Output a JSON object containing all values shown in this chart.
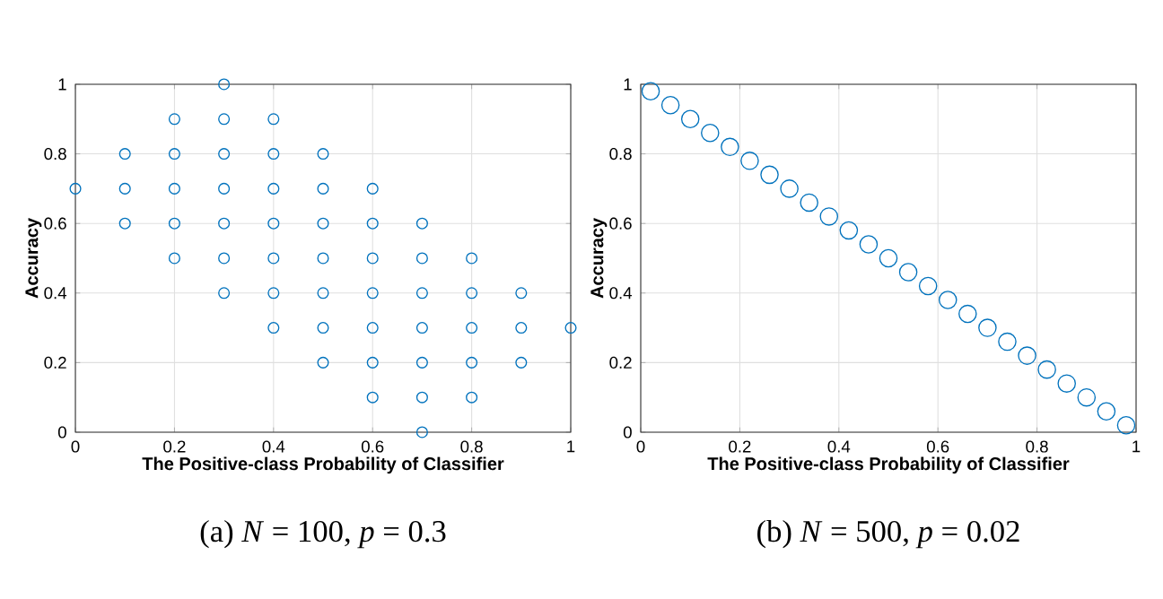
{
  "chart_data": [
    {
      "type": "scatter",
      "xlabel": "The Positive-class Probability of Classifier",
      "ylabel": "Accuracy",
      "series": [
        {
          "color": "#0072bd",
          "x": [
            0,
            0.1,
            0.1,
            0.1,
            0.2,
            0.2,
            0.2,
            0.2,
            0.2,
            0.3,
            0.3,
            0.3,
            0.3,
            0.3,
            0.3,
            0.3,
            0.4,
            0.4,
            0.4,
            0.4,
            0.4,
            0.4,
            0.4,
            0.5,
            0.5,
            0.5,
            0.5,
            0.5,
            0.5,
            0.5,
            0.6,
            0.6,
            0.6,
            0.6,
            0.6,
            0.6,
            0.6,
            0.7,
            0.7,
            0.7,
            0.7,
            0.7,
            0.7,
            0.7,
            0.8,
            0.8,
            0.8,
            0.8,
            0.8,
            0.9,
            0.9,
            0.9,
            1
          ],
          "values": [
            0.7,
            0.6,
            0.7,
            0.8,
            0.5,
            0.6,
            0.7,
            0.8,
            0.9,
            0.4,
            0.5,
            0.6,
            0.7,
            0.8,
            0.9,
            1,
            0.3,
            0.4,
            0.5,
            0.6,
            0.7,
            0.8,
            0.9,
            0.2,
            0.3,
            0.4,
            0.5,
            0.6,
            0.7,
            0.8,
            0.1,
            0.2,
            0.3,
            0.4,
            0.5,
            0.6,
            0.7,
            0,
            0.1,
            0.2,
            0.3,
            0.4,
            0.5,
            0.6,
            0.1,
            0.2,
            0.3,
            0.4,
            0.5,
            0.2,
            0.3,
            0.4,
            0.3
          ]
        }
      ],
      "xlim": [
        0,
        1
      ],
      "ylim": [
        0,
        1
      ],
      "xticks": [
        0,
        0.2,
        0.4,
        0.6,
        0.8,
        1
      ],
      "yticks": [
        0,
        0.2,
        0.4,
        0.6,
        0.8,
        1
      ],
      "grid": true,
      "marker": "circle",
      "annotations": [
        "(a) *N* = 100, *p* = 0.3"
      ]
    },
    {
      "type": "scatter",
      "xlabel": "The Positive-class Probability of Classifier",
      "ylabel": "Accuracy",
      "series": [
        {
          "color": "#0072bd",
          "x": [
            0.02,
            0.06,
            0.1,
            0.14,
            0.18,
            0.22,
            0.26,
            0.3,
            0.34,
            0.38,
            0.42,
            0.46,
            0.5,
            0.54,
            0.58,
            0.62,
            0.66,
            0.7,
            0.74,
            0.78,
            0.82,
            0.86,
            0.9,
            0.94,
            0.98
          ],
          "values": [
            0.98,
            0.94,
            0.9,
            0.86,
            0.82,
            0.78,
            0.74,
            0.7,
            0.66,
            0.62,
            0.58,
            0.54,
            0.5,
            0.46,
            0.42,
            0.38,
            0.34,
            0.3,
            0.26,
            0.22,
            0.18,
            0.14,
            0.1,
            0.06,
            0.02
          ]
        }
      ],
      "xlim": [
        0,
        1
      ],
      "ylim": [
        0,
        1
      ],
      "xticks": [
        0,
        0.2,
        0.4,
        0.6,
        0.8,
        1
      ],
      "yticks": [
        0,
        0.2,
        0.4,
        0.6,
        0.8,
        1
      ],
      "grid": true,
      "marker": "circle",
      "annotations": [
        "(b) *N* = 500, *p* = 0.02"
      ]
    }
  ]
}
